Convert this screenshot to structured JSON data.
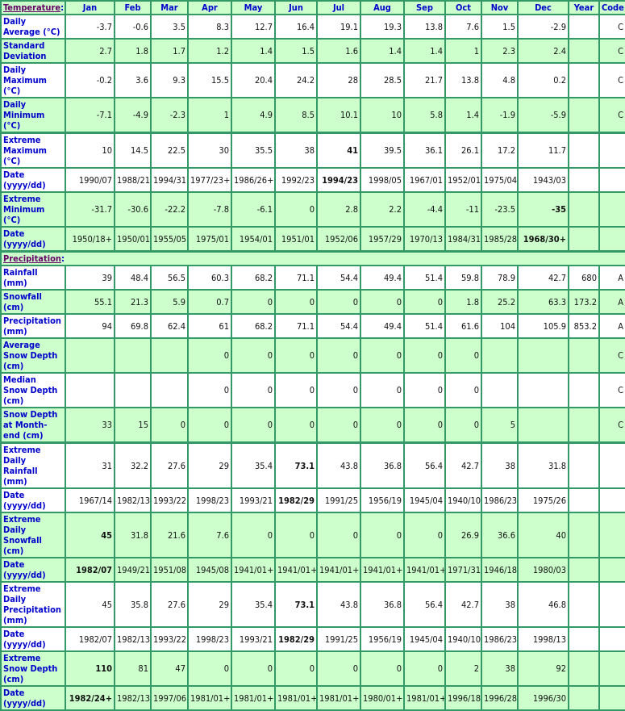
{
  "header": {
    "section_title": "Temperature",
    "months": [
      "Jan",
      "Feb",
      "Mar",
      "Apr",
      "May",
      "Jun",
      "Jul",
      "Aug",
      "Sep",
      "Oct",
      "Nov",
      "Dec"
    ],
    "year": "Year",
    "code": "Code"
  },
  "colors": {
    "border": "#339966",
    "row_alt": "#ccffcc",
    "label": "#0000cc",
    "section_link": "#660066"
  },
  "temperature_rows": [
    {
      "label": "Daily Average (°C)",
      "bg": "w",
      "values": [
        "-3.7",
        "-0.6",
        "3.5",
        "8.3",
        "12.7",
        "16.4",
        "19.1",
        "19.3",
        "13.8",
        "7.6",
        "1.5",
        "-2.9"
      ],
      "year": "",
      "code": "C",
      "bold": []
    },
    {
      "label": "Standard Deviation",
      "bg": "g",
      "values": [
        "2.7",
        "1.8",
        "1.7",
        "1.2",
        "1.4",
        "1.5",
        "1.6",
        "1.4",
        "1.4",
        "1",
        "2.3",
        "2.4"
      ],
      "year": "",
      "code": "C",
      "bold": []
    },
    {
      "label": "Daily Maximum (°C)",
      "bg": "w",
      "values": [
        "-0.2",
        "3.6",
        "9.3",
        "15.5",
        "20.4",
        "24.2",
        "28",
        "28.5",
        "21.7",
        "13.8",
        "4.8",
        "0.2"
      ],
      "year": "",
      "code": "C",
      "bold": []
    },
    {
      "label": "Daily Minimum (°C)",
      "bg": "g",
      "values": [
        "-7.1",
        "-4.9",
        "-2.3",
        "1",
        "4.9",
        "8.5",
        "10.1",
        "10",
        "5.8",
        "1.4",
        "-1.9",
        "-5.9"
      ],
      "year": "",
      "code": "C",
      "bold": []
    },
    {
      "label": "Extreme Maximum (°C)",
      "bg": "w",
      "sec": true,
      "values": [
        "10",
        "14.5",
        "22.5",
        "30",
        "35.5",
        "38",
        "41",
        "39.5",
        "36.1",
        "26.1",
        "17.2",
        "11.7"
      ],
      "year": "",
      "code": "",
      "bold": [
        6
      ]
    },
    {
      "label": "Date (yyyy/dd)",
      "bg": "w",
      "values": [
        "1990/07",
        "1988/21",
        "1994/31",
        "1977/23+",
        "1986/26+",
        "1992/23",
        "1994/23",
        "1998/05",
        "1967/01",
        "1952/01",
        "1975/04",
        "1943/03"
      ],
      "year": "",
      "code": "",
      "bold": [
        6
      ]
    },
    {
      "label": "Extreme Minimum (°C)",
      "bg": "g",
      "values": [
        "-31.7",
        "-30.6",
        "-22.2",
        "-7.8",
        "-6.1",
        "0",
        "2.8",
        "2.2",
        "-4.4",
        "-11",
        "-23.5",
        "-35"
      ],
      "year": "",
      "code": "",
      "bold": [
        11
      ]
    },
    {
      "label": "Date (yyyy/dd)",
      "bg": "g",
      "values": [
        "1950/18+",
        "1950/01",
        "1955/05",
        "1975/01",
        "1954/01",
        "1951/01",
        "1952/06",
        "1957/29",
        "1970/13",
        "1984/31",
        "1985/28",
        "1968/30+"
      ],
      "year": "",
      "code": "",
      "bold": [
        11
      ]
    }
  ],
  "precipitation": {
    "section_title": "Precipitation"
  },
  "precipitation_rows": [
    {
      "label": "Rainfall (mm)",
      "bg": "w",
      "values": [
        "39",
        "48.4",
        "56.5",
        "60.3",
        "68.2",
        "71.1",
        "54.4",
        "49.4",
        "51.4",
        "59.8",
        "78.9",
        "42.7"
      ],
      "year": "680",
      "code": "A",
      "bold": []
    },
    {
      "label": "Snowfall (cm)",
      "bg": "g",
      "values": [
        "55.1",
        "21.3",
        "5.9",
        "0.7",
        "0",
        "0",
        "0",
        "0",
        "0",
        "1.8",
        "25.2",
        "63.3"
      ],
      "year": "173.2",
      "code": "A",
      "bold": []
    },
    {
      "label": "Precipitation (mm)",
      "bg": "w",
      "values": [
        "94",
        "69.8",
        "62.4",
        "61",
        "68.2",
        "71.1",
        "54.4",
        "49.4",
        "51.4",
        "61.6",
        "104",
        "105.9"
      ],
      "year": "853.2",
      "code": "A",
      "bold": []
    },
    {
      "label": "Average Snow Depth (cm)",
      "bg": "g",
      "values": [
        "",
        "",
        "",
        "0",
        "0",
        "0",
        "0",
        "0",
        "0",
        "0",
        "",
        ""
      ],
      "year": "",
      "code": "C",
      "bold": []
    },
    {
      "label": "Median Snow Depth (cm)",
      "bg": "w",
      "values": [
        "",
        "",
        "",
        "0",
        "0",
        "0",
        "0",
        "0",
        "0",
        "0",
        "",
        ""
      ],
      "year": "",
      "code": "C",
      "bold": []
    },
    {
      "label": "Snow Depth at Month-end (cm)",
      "bg": "g",
      "values": [
        "33",
        "15",
        "0",
        "0",
        "0",
        "0",
        "0",
        "0",
        "0",
        "0",
        "5",
        ""
      ],
      "year": "",
      "code": "C",
      "bold": []
    },
    {
      "label": "Extreme Daily Rainfall (mm)",
      "bg": "w",
      "sec": true,
      "values": [
        "31",
        "32.2",
        "27.6",
        "29",
        "35.4",
        "73.1",
        "43.8",
        "36.8",
        "56.4",
        "42.7",
        "38",
        "31.8"
      ],
      "year": "",
      "code": "",
      "bold": [
        5
      ]
    },
    {
      "label": "Date (yyyy/dd)",
      "bg": "w",
      "values": [
        "1967/14",
        "1982/13",
        "1993/22",
        "1998/23",
        "1993/21",
        "1982/29",
        "1991/25",
        "1956/19",
        "1945/04",
        "1940/10",
        "1986/23",
        "1975/26"
      ],
      "year": "",
      "code": "",
      "bold": [
        5
      ]
    },
    {
      "label": "Extreme Daily Snowfall (cm)",
      "bg": "g",
      "values": [
        "45",
        "31.8",
        "21.6",
        "7.6",
        "0",
        "0",
        "0",
        "0",
        "0",
        "26.9",
        "36.6",
        "40"
      ],
      "year": "",
      "code": "",
      "bold": [
        0
      ]
    },
    {
      "label": "Date (yyyy/dd)",
      "bg": "g",
      "values": [
        "1982/07",
        "1949/21",
        "1951/08",
        "1945/08",
        "1941/01+",
        "1941/01+",
        "1941/01+",
        "1941/01+",
        "1941/01+",
        "1971/31",
        "1946/18",
        "1980/03"
      ],
      "year": "",
      "code": "",
      "bold": [
        0
      ]
    },
    {
      "label": "Extreme Daily Precipitation (mm)",
      "bg": "w",
      "values": [
        "45",
        "35.8",
        "27.6",
        "29",
        "35.4",
        "73.1",
        "43.8",
        "36.8",
        "56.4",
        "42.7",
        "38",
        "46.8"
      ],
      "year": "",
      "code": "",
      "bold": [
        5
      ]
    },
    {
      "label": "Date (yyyy/dd)",
      "bg": "w",
      "values": [
        "1982/07",
        "1982/13",
        "1993/22",
        "1998/23",
        "1993/21",
        "1982/29",
        "1991/25",
        "1956/19",
        "1945/04",
        "1940/10",
        "1986/23",
        "1998/13"
      ],
      "year": "",
      "code": "",
      "bold": [
        5
      ]
    },
    {
      "label": "Extreme Snow Depth (cm)",
      "bg": "g",
      "values": [
        "110",
        "81",
        "47",
        "0",
        "0",
        "0",
        "0",
        "0",
        "0",
        "2",
        "38",
        "92"
      ],
      "year": "",
      "code": "",
      "bold": [
        0
      ]
    },
    {
      "label": "Date (yyyy/dd)",
      "bg": "g",
      "values": [
        "1982/24+",
        "1982/13",
        "1997/06",
        "1981/01+",
        "1981/01+",
        "1981/01+",
        "1981/01+",
        "1980/01+",
        "1981/01+",
        "1996/18",
        "1996/28",
        "1996/30"
      ],
      "year": "",
      "code": "",
      "bold": [
        0
      ]
    }
  ]
}
